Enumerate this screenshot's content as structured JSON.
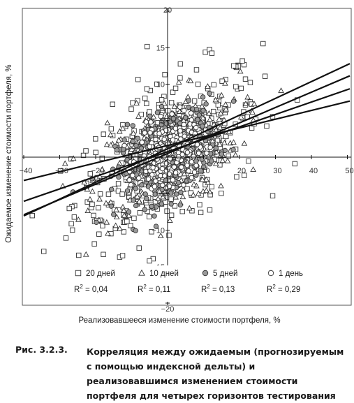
{
  "chart_data": {
    "type": "scatter",
    "title": "",
    "xlabel": "Реализовавшееся изменение стоимости портфеля, %",
    "ylabel": "Ожидаемое изменение стоимости портфеля, %",
    "xlim": [
      -42,
      53
    ],
    "ylim": [
      -20,
      20
    ],
    "x_ticks": [
      -40,
      -30,
      -20,
      -10,
      10,
      20,
      30,
      40,
      50
    ],
    "y_ticks": [
      20,
      15,
      10,
      5,
      -5,
      -10,
      -15,
      -20
    ],
    "x_tick_labels": [
      "−40",
      "−30",
      "−20",
      "−10",
      "10",
      "20",
      "30",
      "40",
      "50"
    ],
    "y_tick_labels": [
      "20",
      "15",
      "10",
      "5",
      "−5",
      "−10",
      "−15",
      "−20"
    ],
    "grid": false,
    "legend_position": "bottom",
    "series": [
      {
        "name": "20 дней",
        "marker": "square",
        "fill": "#ffffff",
        "spread_x": 13,
        "spread_y": 5.0,
        "r2_label": "0,04",
        "slope": 0.25,
        "intercept": 0.2
      },
      {
        "name": "10 дней",
        "marker": "triangle",
        "fill": "#ffffff",
        "spread_x": 10,
        "spread_y": 3.8,
        "r2_label": "0,11",
        "slope": 0.18,
        "intercept": 0.4
      },
      {
        "name": "5 дней",
        "marker": "circle",
        "fill": "#999999",
        "spread_x": 7,
        "spread_y": 2.9,
        "r2_label": "0,13",
        "slope": 0.21,
        "intercept": 0.3
      },
      {
        "name": "1 день",
        "marker": "circle",
        "fill": "#ffffff",
        "spread_x": 4,
        "spread_y": 2.0,
        "r2_label": "0,29",
        "slope": 0.13,
        "intercept": 0.6
      }
    ],
    "r2_prefix": "R",
    "r2_exp": "2",
    "r2_eq": " = "
  },
  "caption": {
    "label": "Рис. 3.2.3.",
    "text": "Корреляция между ожидаемым (прогнозируемым с помощью индексной дельты) и реализовавшимся изменением стоимости портфеля для четырех горизонтов тестирования"
  },
  "colors": {
    "line": "#111111",
    "marker_stroke": "#333333",
    "frame": "#555555"
  }
}
